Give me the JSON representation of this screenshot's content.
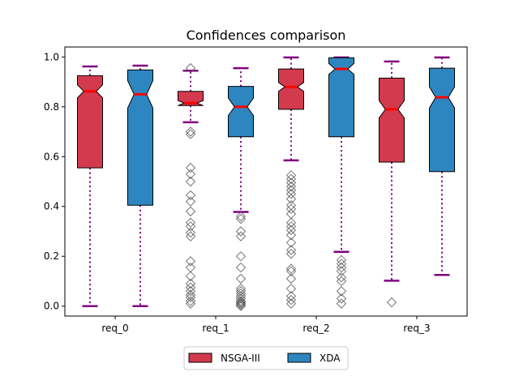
{
  "chart_data": {
    "type": "boxplot",
    "title": "Confidences comparison",
    "xlabel": "",
    "ylabel": "",
    "ylim": [
      -0.04,
      1.04
    ],
    "yticks": [
      0.0,
      0.2,
      0.4,
      0.6,
      0.8,
      1.0
    ],
    "ytick_labels": [
      "0.0",
      "0.2",
      "0.4",
      "0.6",
      "0.8",
      "1.0"
    ],
    "categories": [
      "req_0",
      "req_1",
      "req_2",
      "req_3"
    ],
    "notched": true,
    "grid": false,
    "legend_position": "bottom-center",
    "median_color": "#ff0000",
    "whisker_color": "#800080",
    "flier_color": "#555555",
    "series": [
      {
        "name": "NSGA-III",
        "color": "#d33a4e",
        "boxes": [
          {
            "whislo": 0.0,
            "q1": 0.555,
            "med": 0.862,
            "q3": 0.925,
            "whishi": 0.962,
            "notch": [
              0.836,
              0.888
            ],
            "fliers": []
          },
          {
            "whislo": 0.738,
            "q1": 0.805,
            "med": 0.815,
            "q3": 0.862,
            "whishi": 0.945,
            "notch": [
              0.805,
              0.825
            ],
            "fliers": [
              0.955,
              0.7,
              0.69,
              0.555,
              0.53,
              0.5,
              0.445,
              0.42,
              0.38,
              0.335,
              0.32,
              0.295,
              0.28,
              0.18,
              0.155,
              0.12,
              0.09,
              0.075,
              0.06,
              0.045,
              0.035,
              0.02,
              0.01
            ]
          },
          {
            "whislo": 0.585,
            "q1": 0.79,
            "med": 0.88,
            "q3": 0.952,
            "whishi": 0.998,
            "notch": [
              0.862,
              0.898
            ],
            "fliers": [
              0.525,
              0.51,
              0.495,
              0.48,
              0.465,
              0.45,
              0.43,
              0.405,
              0.39,
              0.37,
              0.335,
              0.32,
              0.305,
              0.285,
              0.255,
              0.225,
              0.21,
              0.15,
              0.14,
              0.11,
              0.07,
              0.04,
              0.025,
              0.01
            ]
          },
          {
            "whislo": 0.102,
            "q1": 0.578,
            "med": 0.79,
            "q3": 0.915,
            "whishi": 0.982,
            "notch": [
              0.755,
              0.825
            ],
            "fliers": [
              0.015
            ]
          }
        ]
      },
      {
        "name": "XDA",
        "color": "#2e86c1",
        "boxes": [
          {
            "whislo": 0.0,
            "q1": 0.405,
            "med": 0.85,
            "q3": 0.948,
            "whishi": 0.965,
            "notch": [
              0.795,
              0.905
            ],
            "fliers": []
          },
          {
            "whislo": 0.378,
            "q1": 0.68,
            "med": 0.8,
            "q3": 0.882,
            "whishi": 0.955,
            "notch": [
              0.765,
              0.835
            ],
            "fliers": [
              0.36,
              0.35,
              0.3,
              0.28,
              0.2,
              0.155,
              0.11,
              0.07,
              0.06,
              0.05,
              0.04,
              0.03,
              0.02,
              0.015,
              0.01,
              0.005,
              0.0
            ]
          },
          {
            "whislo": 0.218,
            "q1": 0.68,
            "med": 0.952,
            "q3": 0.997,
            "whishi": 0.998,
            "notch": [
              0.93,
              0.974
            ],
            "fliers": [
              0.185,
              0.17,
              0.155,
              0.14,
              0.115,
              0.1,
              0.06,
              0.03,
              0.01
            ]
          },
          {
            "whislo": 0.125,
            "q1": 0.54,
            "med": 0.838,
            "q3": 0.955,
            "whishi": 0.998,
            "notch": [
              0.795,
              0.88
            ],
            "fliers": []
          }
        ]
      }
    ]
  }
}
